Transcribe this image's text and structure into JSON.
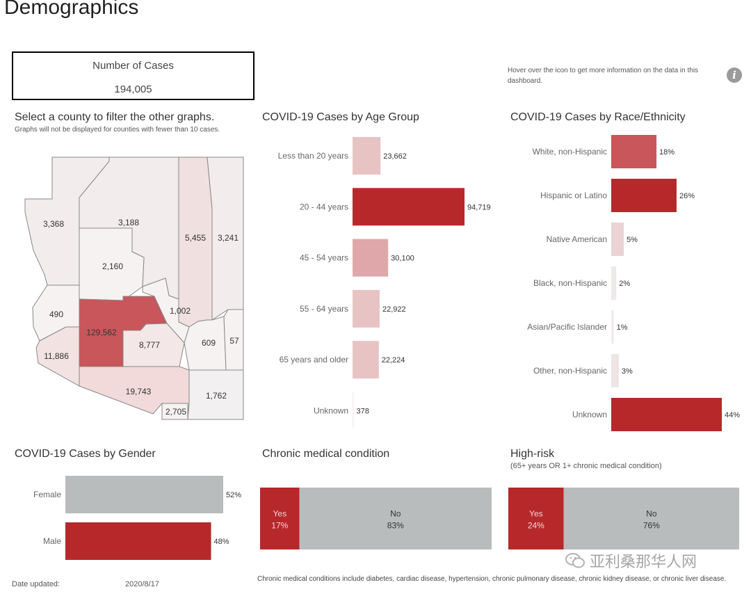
{
  "page": {
    "title": "Demographics"
  },
  "kpi": {
    "label": "Number of Cases",
    "value": "194,005"
  },
  "info": {
    "text": "Hover over the icon to get more information on the data in this dashboard.",
    "icon": "i"
  },
  "map": {
    "title": "Select a county to filter the other graphs.",
    "subtitle": "Graphs will not be displayed for counties with fewer than 10 cases.",
    "counties": [
      {
        "label": "3,368",
        "value": 3368
      },
      {
        "label": "3,188",
        "value": 3188
      },
      {
        "label": "5,455",
        "value": 5455
      },
      {
        "label": "3,241",
        "value": 3241
      },
      {
        "label": "2,160",
        "value": 2160
      },
      {
        "label": "490",
        "value": 490
      },
      {
        "label": "129,562",
        "value": 129562
      },
      {
        "label": "1,002",
        "value": 1002
      },
      {
        "label": "8,777",
        "value": 8777
      },
      {
        "label": "11,886",
        "value": 11886
      },
      {
        "label": "609",
        "value": 609
      },
      {
        "label": "57",
        "value": 57
      },
      {
        "label": "19,743",
        "value": 19743
      },
      {
        "label": "1,762",
        "value": 1762
      },
      {
        "label": "2,705",
        "value": 2705
      }
    ]
  },
  "chart_data": [
    {
      "type": "bar",
      "title": "COVID-19 Cases by Age Group",
      "categories": [
        "Less than 20 years",
        "20 - 44 years",
        "45 - 54 years",
        "55 - 64 years",
        "65 years and older",
        "Unknown"
      ],
      "values": [
        23662,
        94719,
        30100,
        22922,
        22224,
        378
      ],
      "labels": [
        "23,662",
        "94,719",
        "30,100",
        "22,922",
        "22,224",
        "378"
      ],
      "colors": [
        "#e8c3c3",
        "#b7282b",
        "#dfa7a9",
        "#e8c3c3",
        "#e8c3c3",
        "#f6ecec"
      ]
    },
    {
      "type": "bar",
      "title": "COVID-19 Cases by Race/Ethnicity",
      "categories": [
        "White, non-Hispanic",
        "Hispanic or Latino",
        "Native American",
        "Black, non-Hispanic",
        "Asian/Pacific Islander",
        "Other, non-Hispanic",
        "Unknown"
      ],
      "values": [
        18,
        26,
        5,
        2,
        1,
        3,
        44
      ],
      "labels": [
        "18%",
        "26%",
        "5%",
        "2%",
        "1%",
        "3%",
        "44%"
      ],
      "colors": [
        "#c8565a",
        "#b7282b",
        "#ecd3d3",
        "#eeeaea",
        "#f0ecec",
        "#ede4e4",
        "#b7282b"
      ]
    },
    {
      "type": "bar",
      "title": "COVID-19 Cases by Gender",
      "categories": [
        "Female",
        "Male"
      ],
      "values": [
        52,
        48
      ],
      "labels": [
        "52%",
        "48%"
      ],
      "colors": [
        "#b9bcbd",
        "#b7282b"
      ]
    },
    {
      "type": "bar",
      "title": "Chronic medical condition",
      "categories": [
        "Yes",
        "No"
      ],
      "values": [
        17,
        83
      ],
      "labels": [
        "17%",
        "83%"
      ],
      "colors": [
        "#b7282b",
        "#b9bcbd"
      ]
    },
    {
      "type": "bar",
      "title": "High-risk",
      "subtitle": "(65+ years OR 1+ chronic medical condition)",
      "categories": [
        "Yes",
        "No"
      ],
      "values": [
        24,
        76
      ],
      "labels": [
        "24%",
        "76%"
      ],
      "colors": [
        "#b7282b",
        "#b9bcbd"
      ]
    }
  ],
  "footer": {
    "date_label": "Date updated:",
    "date_value": "2020/8/17",
    "note": "Chronic medical conditions include diabetes, cardiac disease, hypertension, chronic pulmonary disease, chronic kidney disease, or chronic liver disease."
  },
  "watermark": {
    "text": "亚利桑那华人网"
  }
}
